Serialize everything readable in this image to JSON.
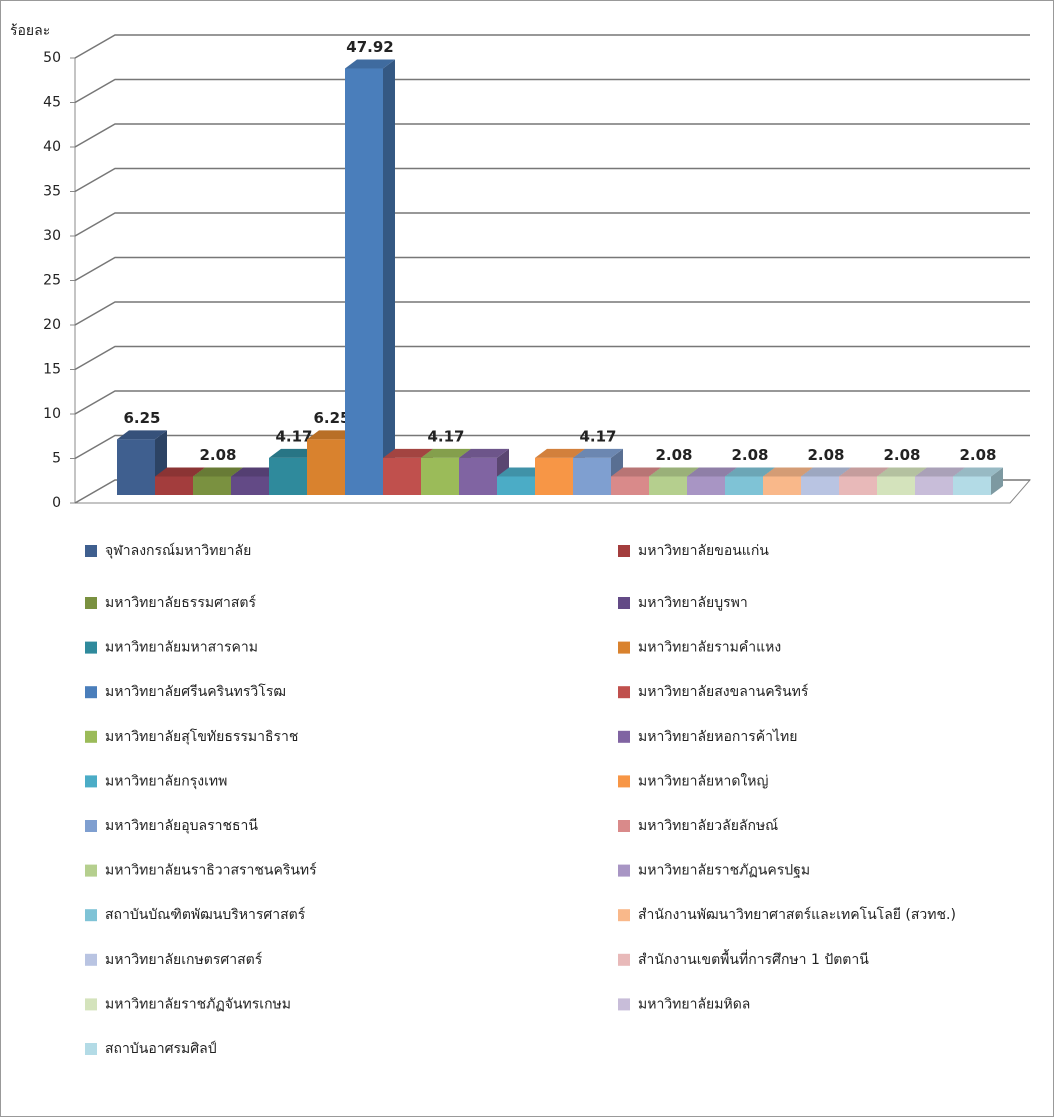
{
  "chart_data": {
    "type": "bar",
    "ylabel": "ร้อยละ",
    "ylim": [
      0,
      50
    ],
    "yticks": [
      0,
      5,
      10,
      15,
      20,
      25,
      30,
      35,
      40,
      45,
      50
    ],
    "grid": true,
    "series": [
      {
        "name": "จุฬาลงกรณ์มหาวิทยาลัย",
        "color": "#3f5f8f",
        "values": [
          6.25
        ],
        "value_labels": [
          "6.25"
        ]
      },
      {
        "name": "มหาวิทยาลัยขอนแก่น",
        "color": "#a33d3d",
        "values": [
          2.08
        ]
      },
      {
        "name": "มหาวิทยาลัยธรรมศาสตร์",
        "color": "#7a9140",
        "values": [
          2.08
        ],
        "value_labels": [
          "2.08"
        ]
      },
      {
        "name": "มหาวิทยาลัยบูรพา",
        "color": "#634a86",
        "values": [
          2.08
        ]
      },
      {
        "name": "มหาวิทยาลัยมหาสารคาม",
        "color": "#2f8a9c",
        "values": [
          4.17
        ],
        "value_labels": [
          "4.17"
        ]
      },
      {
        "name": "มหาวิทยาลัยรามคำแหง",
        "color": "#d9822e",
        "values": [
          6.25
        ],
        "value_labels": [
          "6.25"
        ]
      },
      {
        "name": "มหาวิทยาลัยศรีนครินทรวิโรฒ",
        "color": "#4a7ebb",
        "values": [
          47.92
        ],
        "value_labels": [
          "47.92"
        ]
      },
      {
        "name": "มหาวิทยาลัยสงขลานครินทร์",
        "color": "#c0504d",
        "values": [
          4.17
        ]
      },
      {
        "name": "มหาวิทยาลัยสุโขทัยธรรมาธิราช",
        "color": "#9bbb59",
        "values": [
          4.17
        ],
        "value_labels": [
          "4.17"
        ]
      },
      {
        "name": "มหาวิทยาลัยหอการค้าไทย",
        "color": "#8064a2",
        "values": [
          4.17
        ]
      },
      {
        "name": "มหาวิทยาลัยกรุงเทพ",
        "color": "#4bacc6",
        "values": [
          2.08
        ]
      },
      {
        "name": "มหาวิทยาลัยหาดใหญ่",
        "color": "#f79646",
        "values": [
          4.17
        ]
      },
      {
        "name": "มหาวิทยาลัยอุบลราชธานี",
        "color": "#7f9fd0",
        "values": [
          4.17
        ],
        "value_labels": [
          "4.17"
        ]
      },
      {
        "name": "มหาวิทยาลัยวลัยลักษณ์",
        "color": "#d98a8a",
        "values": [
          2.08
        ]
      },
      {
        "name": "มหาวิทยาลัยนราธิวาสราชนครินทร์",
        "color": "#b5cf8e",
        "values": [
          2.08
        ],
        "value_labels": [
          "2.08"
        ]
      },
      {
        "name": "มหาวิทยาลัยราชภัฏนครปฐม",
        "color": "#a895c4",
        "values": [
          2.08
        ]
      },
      {
        "name": "สถาบันบัณฑิตพัฒนบริหารศาสตร์",
        "color": "#7fc3d6",
        "values": [
          2.08
        ],
        "value_labels": [
          "2.08"
        ]
      },
      {
        "name": "สำนักงานพัฒนาวิทยาศาสตร์และเทคโนโลยี (สวทช.)",
        "color": "#f9b88a",
        "values": [
          2.08
        ]
      },
      {
        "name": "มหาวิทยาลัยเกษตรศาสตร์",
        "color": "#b9c4e2",
        "values": [
          2.08
        ],
        "value_labels": [
          "2.08"
        ]
      },
      {
        "name": "สำนักงานเขตพื้นที่การศึกษา 1 ปัตตานี",
        "color": "#e8b9b9",
        "values": [
          2.08
        ]
      },
      {
        "name": "มหาวิทยาลัยราชภัฏจันทรเกษม",
        "color": "#d4e3bc",
        "values": [
          2.08
        ],
        "value_labels": [
          "2.08"
        ]
      },
      {
        "name": "มหาวิทยาลัยมหิดล",
        "color": "#c8bdd9",
        "values": [
          2.08
        ]
      },
      {
        "name": "สถาบันอาศรมศิลป์",
        "color": "#b3dbe6",
        "values": [
          2.08
        ],
        "value_labels": [
          "2.08"
        ]
      }
    ]
  }
}
